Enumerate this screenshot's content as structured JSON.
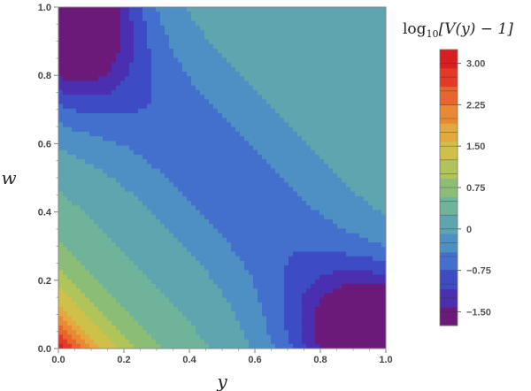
{
  "chart_data": {
    "type": "heatmap",
    "plot_style": "filled contour",
    "x_axis": {
      "label": "y",
      "range": [
        0,
        1
      ],
      "ticks": [
        "0.0",
        "0.2",
        "0.4",
        "0.6",
        "0.8",
        "1.0"
      ]
    },
    "y_axis": {
      "label": "w",
      "range": [
        0,
        1
      ],
      "ticks": [
        "0.0",
        "0.2",
        "0.4",
        "0.6",
        "0.8",
        "1.0"
      ]
    },
    "colorbar": {
      "title_main": "log",
      "title_sub": "10",
      "title_rest": "[V(y) − 1]",
      "range": [
        -1.75,
        3.25
      ],
      "contour_step": 0.25,
      "tick_values": [
        3.0,
        2.25,
        1.5,
        0.75,
        0,
        -0.75,
        -1.5
      ],
      "tick_labels": [
        "3.00",
        "2.25",
        "1.50",
        "0.75",
        "0",
        "−0.75",
        "−1.50"
      ],
      "placement": "right"
    },
    "regions_described": {
      "corner_y0_w0": 3.25,
      "top_left_minimum_y_w": [
        0.03,
        1.0
      ],
      "bottom_right_minimum_y_w": [
        1.0,
        0.03
      ],
      "minimum_value": -1.75,
      "upper_right_plateau": 0.1
    }
  },
  "colors": {
    "scale": [
      "#6b1a7a",
      "#4a2fb0",
      "#3d4cc4",
      "#4270cc",
      "#4e8fc4",
      "#5ea5b0",
      "#6eb39a",
      "#8cbd77",
      "#b0c45a",
      "#cfc04a",
      "#e3a93e",
      "#ea8934",
      "#e8652d",
      "#e23a26",
      "#d81e1e"
    ]
  }
}
